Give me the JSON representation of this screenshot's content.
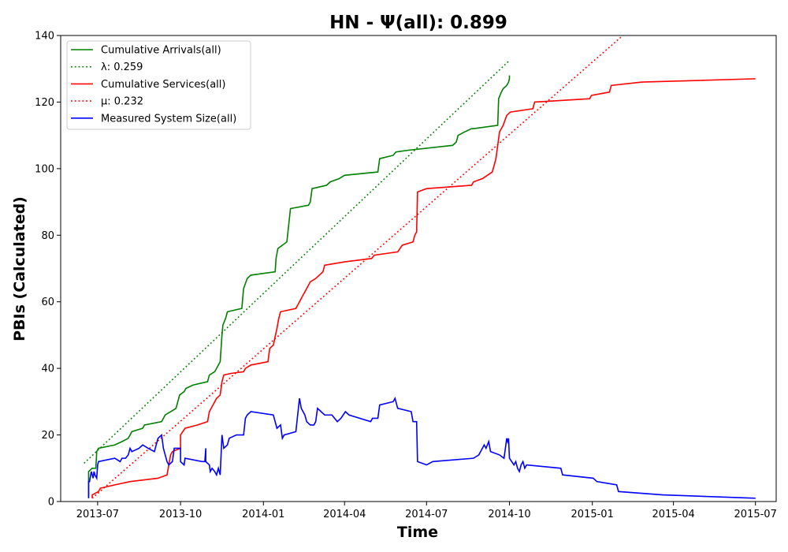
{
  "chart_data": {
    "type": "line",
    "title": "HN -  Ψ(all): 0.899",
    "xlabel": "Time",
    "ylabel": "PBIs (Calculated)",
    "xlim": [
      "2013-05-21",
      "2015-07-24"
    ],
    "ylim": [
      0,
      140
    ],
    "x_ticks": [
      "2013-07-01",
      "2013-10-01",
      "2014-01-01",
      "2014-04-01",
      "2014-07-01",
      "2014-10-01",
      "2015-01-01",
      "2015-04-01",
      "2015-07-01"
    ],
    "x_tick_labels": [
      "2013-07",
      "2013-10",
      "2014-01",
      "2014-04",
      "2014-07",
      "2014-10",
      "2015-01",
      "2015-04",
      "2015-07"
    ],
    "y_ticks": [
      0,
      20,
      40,
      60,
      80,
      100,
      120,
      140
    ],
    "y_tick_labels": [
      "0",
      "20",
      "40",
      "60",
      "80",
      "100",
      "120",
      "140"
    ],
    "grid": false,
    "legend_position": "top-left",
    "series": [
      {
        "name": "Cumulative Arrivals(all)",
        "color": "#008000",
        "style": "solid",
        "points": [
          [
            "2013-06-21",
            1
          ],
          [
            "2013-06-21",
            9
          ],
          [
            "2013-06-25",
            10
          ],
          [
            "2013-06-29",
            10
          ],
          [
            "2013-06-30",
            15
          ],
          [
            "2013-07-02",
            16
          ],
          [
            "2013-07-20",
            17
          ],
          [
            "2013-07-28",
            18
          ],
          [
            "2013-08-04",
            19
          ],
          [
            "2013-08-08",
            21
          ],
          [
            "2013-08-20",
            22
          ],
          [
            "2013-08-22",
            23
          ],
          [
            "2013-09-10",
            24
          ],
          [
            "2013-09-14",
            26
          ],
          [
            "2013-09-20",
            27
          ],
          [
            "2013-09-26",
            28
          ],
          [
            "2013-09-30",
            32
          ],
          [
            "2013-10-05",
            33
          ],
          [
            "2013-10-07",
            34
          ],
          [
            "2013-10-15",
            35
          ],
          [
            "2013-10-31",
            36
          ],
          [
            "2013-11-02",
            38
          ],
          [
            "2013-11-08",
            39
          ],
          [
            "2013-11-12",
            41
          ],
          [
            "2013-11-14",
            42
          ],
          [
            "2013-11-16",
            50
          ],
          [
            "2013-11-17",
            53
          ],
          [
            "2013-11-20",
            55
          ],
          [
            "2013-11-22",
            57
          ],
          [
            "2013-12-08",
            58
          ],
          [
            "2013-12-10",
            64
          ],
          [
            "2013-12-14",
            67
          ],
          [
            "2013-12-18",
            68
          ],
          [
            "2014-01-14",
            69
          ],
          [
            "2014-01-15",
            73
          ],
          [
            "2014-01-17",
            76
          ],
          [
            "2014-01-27",
            78
          ],
          [
            "2014-01-29",
            83
          ],
          [
            "2014-01-31",
            88
          ],
          [
            "2014-02-20",
            89
          ],
          [
            "2014-02-22",
            90
          ],
          [
            "2014-02-24",
            94
          ],
          [
            "2014-03-12",
            95
          ],
          [
            "2014-03-16",
            96
          ],
          [
            "2014-03-26",
            97
          ],
          [
            "2014-04-01",
            98
          ],
          [
            "2014-05-08",
            99
          ],
          [
            "2014-05-10",
            103
          ],
          [
            "2014-05-25",
            104
          ],
          [
            "2014-05-28",
            105
          ],
          [
            "2014-06-10",
            105.5
          ],
          [
            "2014-07-30",
            107
          ],
          [
            "2014-08-03",
            108
          ],
          [
            "2014-08-05",
            110
          ],
          [
            "2014-08-12",
            111
          ],
          [
            "2014-08-20",
            112
          ],
          [
            "2014-08-22",
            112
          ],
          [
            "2014-09-18",
            113
          ],
          [
            "2014-09-19",
            121
          ],
          [
            "2014-09-22",
            123
          ],
          [
            "2014-09-24",
            124
          ],
          [
            "2014-09-28",
            125
          ],
          [
            "2014-09-30",
            126
          ],
          [
            "2014-10-01",
            127
          ],
          [
            "2014-10-01",
            128
          ]
        ]
      },
      {
        "name": "λ: 0.259",
        "color": "#008000",
        "style": "dotted",
        "points": [
          [
            "2013-06-16",
            11.5
          ],
          [
            "2014-10-01",
            132.5
          ]
        ]
      },
      {
        "name": "Cumulative Services(all)",
        "color": "#ff0000",
        "style": "solid",
        "points": [
          [
            "2013-06-25",
            1
          ],
          [
            "2013-06-25",
            2
          ],
          [
            "2013-07-02",
            3
          ],
          [
            "2013-07-04",
            4
          ],
          [
            "2013-07-20",
            5
          ],
          [
            "2013-08-06",
            6
          ],
          [
            "2013-09-06",
            7
          ],
          [
            "2013-09-16",
            8
          ],
          [
            "2013-09-18",
            11
          ],
          [
            "2013-09-20",
            14
          ],
          [
            "2013-09-22",
            15
          ],
          [
            "2013-10-01",
            16
          ],
          [
            "2013-10-01",
            17
          ],
          [
            "2013-10-01",
            20
          ],
          [
            "2013-10-06",
            22
          ],
          [
            "2013-10-20",
            23
          ],
          [
            "2013-10-31",
            24
          ],
          [
            "2013-11-02",
            27
          ],
          [
            "2013-11-06",
            29
          ],
          [
            "2013-11-08",
            30
          ],
          [
            "2013-11-10",
            31
          ],
          [
            "2013-11-14",
            32
          ],
          [
            "2013-11-16",
            36
          ],
          [
            "2013-11-18",
            38
          ],
          [
            "2013-11-26",
            38.5
          ],
          [
            "2013-12-10",
            39
          ],
          [
            "2013-12-12",
            40
          ],
          [
            "2013-12-18",
            41
          ],
          [
            "2014-01-06",
            42
          ],
          [
            "2014-01-08",
            46
          ],
          [
            "2014-01-12",
            47
          ],
          [
            "2014-01-16",
            52
          ],
          [
            "2014-01-18",
            55
          ],
          [
            "2014-01-20",
            57
          ],
          [
            "2014-02-06",
            58
          ],
          [
            "2014-02-10",
            60
          ],
          [
            "2014-02-14",
            62
          ],
          [
            "2014-02-18",
            64
          ],
          [
            "2014-02-22",
            66
          ],
          [
            "2014-02-28",
            67
          ],
          [
            "2014-03-04",
            68
          ],
          [
            "2014-03-08",
            69
          ],
          [
            "2014-03-10",
            71
          ],
          [
            "2014-04-01",
            72
          ],
          [
            "2014-05-01",
            73
          ],
          [
            "2014-05-04",
            74
          ],
          [
            "2014-05-30",
            75
          ],
          [
            "2014-06-04",
            77
          ],
          [
            "2014-06-16",
            78
          ],
          [
            "2014-06-18",
            80
          ],
          [
            "2014-06-20",
            81
          ],
          [
            "2014-06-21",
            93
          ],
          [
            "2014-07-01",
            94
          ],
          [
            "2014-08-20",
            95
          ],
          [
            "2014-08-22",
            96
          ],
          [
            "2014-09-01",
            97
          ],
          [
            "2014-09-12",
            99
          ],
          [
            "2014-09-16",
            103
          ],
          [
            "2014-09-18",
            107
          ],
          [
            "2014-09-20",
            111
          ],
          [
            "2014-09-24",
            113
          ],
          [
            "2014-09-28",
            116
          ],
          [
            "2014-10-02",
            117
          ],
          [
            "2014-10-27",
            118
          ],
          [
            "2014-10-29",
            120
          ],
          [
            "2014-12-29",
            121
          ],
          [
            "2014-12-31",
            122
          ],
          [
            "2015-01-20",
            123
          ],
          [
            "2015-01-22",
            125
          ],
          [
            "2015-02-25",
            126
          ],
          [
            "2015-07-01",
            127
          ]
        ]
      },
      {
        "name": "μ: 0.232",
        "color": "#ff0000",
        "style": "dotted",
        "points": [
          [
            "2013-06-25",
            1
          ],
          [
            "2015-02-06",
            140.5
          ]
        ]
      },
      {
        "name": "Measured System Size(all)",
        "color": "#0000ff",
        "style": "solid",
        "points": [
          [
            "2013-06-21",
            1
          ],
          [
            "2013-06-21",
            6
          ],
          [
            "2013-06-22",
            6
          ],
          [
            "2013-06-24",
            9
          ],
          [
            "2013-06-25",
            8
          ],
          [
            "2013-06-26",
            7
          ],
          [
            "2013-06-27",
            9
          ],
          [
            "2013-06-28",
            8
          ],
          [
            "2013-06-30",
            7
          ],
          [
            "2013-07-01",
            11
          ],
          [
            "2013-07-02",
            12
          ],
          [
            "2013-07-20",
            13
          ],
          [
            "2013-07-26",
            12
          ],
          [
            "2013-07-28",
            13
          ],
          [
            "2013-08-01",
            13
          ],
          [
            "2013-08-04",
            14
          ],
          [
            "2013-08-06",
            16
          ],
          [
            "2013-08-08",
            15
          ],
          [
            "2013-08-16",
            16
          ],
          [
            "2013-08-20",
            17
          ],
          [
            "2013-08-26",
            16
          ],
          [
            "2013-09-02",
            15
          ],
          [
            "2013-09-06",
            19
          ],
          [
            "2013-09-10",
            20
          ],
          [
            "2013-09-12",
            16
          ],
          [
            "2013-09-14",
            14
          ],
          [
            "2013-09-16",
            12
          ],
          [
            "2013-09-18",
            11
          ],
          [
            "2013-09-22",
            12
          ],
          [
            "2013-09-24",
            16
          ],
          [
            "2013-10-01",
            16
          ],
          [
            "2013-10-01",
            12
          ],
          [
            "2013-10-05",
            11
          ],
          [
            "2013-10-06",
            13
          ],
          [
            "2013-10-25",
            12
          ],
          [
            "2013-10-28",
            12
          ],
          [
            "2013-10-29",
            16
          ],
          [
            "2013-10-29",
            12
          ],
          [
            "2013-11-02",
            11
          ],
          [
            "2013-11-03",
            9
          ],
          [
            "2013-11-05",
            10
          ],
          [
            "2013-11-08",
            9
          ],
          [
            "2013-11-10",
            8
          ],
          [
            "2013-11-12",
            10
          ],
          [
            "2013-11-14",
            8
          ],
          [
            "2013-11-16",
            20
          ],
          [
            "2013-11-18",
            16
          ],
          [
            "2013-11-22",
            17
          ],
          [
            "2013-11-24",
            19
          ],
          [
            "2013-12-02",
            20
          ],
          [
            "2013-12-10",
            20
          ],
          [
            "2013-12-12",
            25
          ],
          [
            "2013-12-14",
            26
          ],
          [
            "2013-12-18",
            27
          ],
          [
            "2014-01-12",
            26
          ],
          [
            "2014-01-16",
            22
          ],
          [
            "2014-01-20",
            23
          ],
          [
            "2014-01-22",
            19
          ],
          [
            "2014-01-24",
            20
          ],
          [
            "2014-02-06",
            21
          ],
          [
            "2014-02-08",
            26
          ],
          [
            "2014-02-10",
            31
          ],
          [
            "2014-02-12",
            28
          ],
          [
            "2014-02-16",
            26
          ],
          [
            "2014-02-18",
            24
          ],
          [
            "2014-02-22",
            23
          ],
          [
            "2014-02-26",
            23
          ],
          [
            "2014-02-28",
            24
          ],
          [
            "2014-03-02",
            28
          ],
          [
            "2014-03-06",
            27
          ],
          [
            "2014-03-10",
            26
          ],
          [
            "2014-03-18",
            26
          ],
          [
            "2014-03-24",
            24
          ],
          [
            "2014-03-28",
            25
          ],
          [
            "2014-04-02",
            27
          ],
          [
            "2014-04-06",
            26
          ],
          [
            "2014-04-30",
            24
          ],
          [
            "2014-05-02",
            25
          ],
          [
            "2014-05-08",
            25
          ],
          [
            "2014-05-10",
            29
          ],
          [
            "2014-05-25",
            30
          ],
          [
            "2014-05-27",
            31
          ],
          [
            "2014-05-30",
            28
          ],
          [
            "2014-06-14",
            27
          ],
          [
            "2014-06-16",
            24
          ],
          [
            "2014-06-20",
            24
          ],
          [
            "2014-06-21",
            12
          ],
          [
            "2014-07-01",
            11
          ],
          [
            "2014-07-08",
            12
          ],
          [
            "2014-08-22",
            13
          ],
          [
            "2014-08-28",
            14
          ],
          [
            "2014-09-03",
            17
          ],
          [
            "2014-09-05",
            16
          ],
          [
            "2014-09-08",
            18
          ],
          [
            "2014-09-10",
            15
          ],
          [
            "2014-09-20",
            14
          ],
          [
            "2014-09-25",
            13
          ],
          [
            "2014-09-27",
            17
          ],
          [
            "2014-09-28",
            19
          ],
          [
            "2014-09-29",
            18
          ],
          [
            "2014-09-30",
            19
          ],
          [
            "2014-10-01",
            13
          ],
          [
            "2014-10-06",
            11
          ],
          [
            "2014-10-08",
            12
          ],
          [
            "2014-10-10",
            10
          ],
          [
            "2014-10-12",
            9
          ],
          [
            "2014-10-14",
            11
          ],
          [
            "2014-10-16",
            12
          ],
          [
            "2014-10-18",
            10
          ],
          [
            "2014-10-20",
            11
          ],
          [
            "2014-11-27",
            10
          ],
          [
            "2014-11-29",
            8
          ],
          [
            "2015-01-02",
            7
          ],
          [
            "2015-01-06",
            6
          ],
          [
            "2015-01-28",
            5
          ],
          [
            "2015-01-30",
            3
          ],
          [
            "2015-03-20",
            2
          ],
          [
            "2015-07-01",
            1
          ]
        ]
      }
    ]
  }
}
